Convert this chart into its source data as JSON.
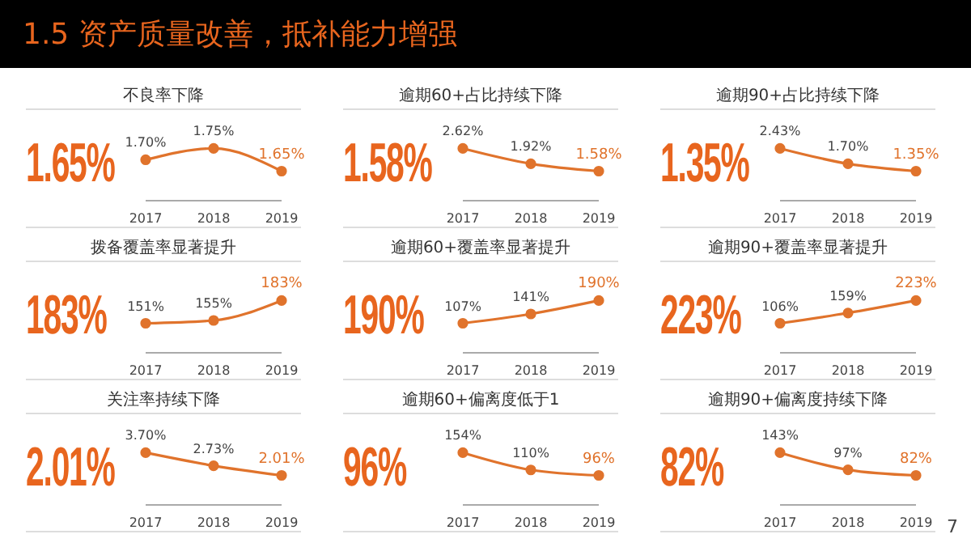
{
  "chart_data": [
    {
      "type": "other",
      "title": "1.5 资产质量改善，抵补能力增强",
      "annotations": [
        "7"
      ]
    },
    {
      "type": "line",
      "title": "不良率下降",
      "categories": [
        "2017",
        "2018",
        "2019"
      ],
      "series": [
        {
          "color": "#e0732c",
          "values": [
            1.7,
            1.75,
            1.65
          ],
          "value_labels": [
            "1.70%",
            "1.75%",
            "1.65%"
          ]
        }
      ],
      "annotations": [
        "1.65%"
      ],
      "marker": "circle",
      "grid": false,
      "legend": false,
      "tick_labels": "x"
    },
    {
      "type": "line",
      "title": "逾期60+占比持续下降",
      "categories": [
        "2017",
        "2018",
        "2019"
      ],
      "series": [
        {
          "color": "#e0732c",
          "values": [
            2.62,
            1.92,
            1.58
          ],
          "value_labels": [
            "2.62%",
            "1.92%",
            "1.58%"
          ]
        }
      ],
      "annotations": [
        "1.58%"
      ],
      "marker": "circle",
      "grid": false,
      "legend": false,
      "tick_labels": "x"
    },
    {
      "type": "line",
      "title": "逾期90+占比持续下降",
      "categories": [
        "2017",
        "2018",
        "2019"
      ],
      "series": [
        {
          "color": "#e0732c",
          "values": [
            2.43,
            1.7,
            1.35
          ],
          "value_labels": [
            "2.43%",
            "1.70%",
            "1.35%"
          ]
        }
      ],
      "annotations": [
        "1.35%"
      ],
      "marker": "circle",
      "grid": false,
      "legend": false,
      "tick_labels": "x"
    },
    {
      "type": "line",
      "title": "拨备覆盖率显著提升",
      "categories": [
        "2017",
        "2018",
        "2019"
      ],
      "series": [
        {
          "color": "#e0732c",
          "values": [
            151,
            155,
            183
          ],
          "value_labels": [
            "151%",
            "155%",
            "183%"
          ]
        }
      ],
      "annotations": [
        "183%"
      ],
      "marker": "circle",
      "grid": false,
      "legend": false,
      "tick_labels": "x"
    },
    {
      "type": "line",
      "title": "逾期60+覆盖率显著提升",
      "categories": [
        "2017",
        "2018",
        "2019"
      ],
      "series": [
        {
          "color": "#e0732c",
          "values": [
            107,
            141,
            190
          ],
          "value_labels": [
            "107%",
            "141%",
            "190%"
          ]
        }
      ],
      "annotations": [
        "190%"
      ],
      "marker": "circle",
      "grid": false,
      "legend": false,
      "tick_labels": "x"
    },
    {
      "type": "line",
      "title": "逾期90+覆盖率显著提升",
      "categories": [
        "2017",
        "2018",
        "2019"
      ],
      "series": [
        {
          "color": "#e0732c",
          "values": [
            106,
            159,
            223
          ],
          "value_labels": [
            "106%",
            "159%",
            "223%"
          ]
        }
      ],
      "annotations": [
        "223%"
      ],
      "marker": "circle",
      "grid": false,
      "legend": false,
      "tick_labels": "x"
    },
    {
      "type": "line",
      "title": "关注率持续下降",
      "categories": [
        "2017",
        "2018",
        "2019"
      ],
      "series": [
        {
          "color": "#e0732c",
          "values": [
            3.7,
            2.73,
            2.01
          ],
          "value_labels": [
            "3.70%",
            "2.73%",
            "2.01%"
          ]
        }
      ],
      "annotations": [
        "2.01%"
      ],
      "marker": "circle",
      "grid": false,
      "legend": false,
      "tick_labels": "x"
    },
    {
      "type": "line",
      "title": "逾期60+偏离度低于1",
      "categories": [
        "2017",
        "2018",
        "2019"
      ],
      "series": [
        {
          "color": "#e0732c",
          "values": [
            154,
            110,
            96
          ],
          "value_labels": [
            "154%",
            "110%",
            "96%"
          ]
        }
      ],
      "annotations": [
        "96%"
      ],
      "marker": "circle",
      "grid": false,
      "legend": false,
      "tick_labels": "x"
    },
    {
      "type": "line",
      "title": "逾期90+偏离度持续下降",
      "categories": [
        "2017",
        "2018",
        "2019"
      ],
      "series": [
        {
          "color": "#e0732c",
          "values": [
            143,
            97,
            82
          ],
          "value_labels": [
            "143%",
            "97%",
            "82%"
          ]
        }
      ],
      "annotations": [
        "82%"
      ],
      "marker": "circle",
      "grid": false,
      "legend": false,
      "tick_labels": "x"
    }
  ]
}
